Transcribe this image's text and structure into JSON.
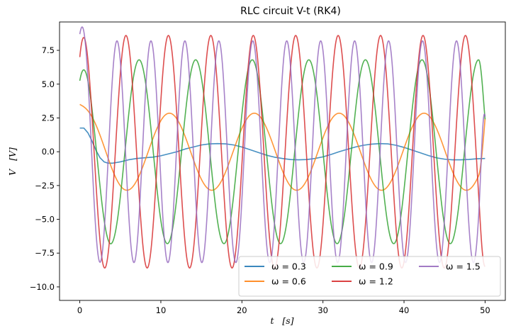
{
  "chart_data": {
    "type": "line",
    "title": "RLC circuit V-t (RK4)",
    "xlabel": "t   [s]",
    "ylabel": "V   [V]",
    "xlim": [
      -2.5,
      52.5
    ],
    "ylim": [
      -11.0,
      9.6
    ],
    "xticks": [
      0,
      10,
      20,
      30,
      40,
      50
    ],
    "xtick_labels": [
      "0",
      "10",
      "20",
      "30",
      "40",
      "50"
    ],
    "yticks": [
      -10.0,
      -7.5,
      -5.0,
      -2.5,
      0.0,
      2.5,
      5.0,
      7.5
    ],
    "ytick_labels": [
      "−10.0",
      "−7.5",
      "−5.0",
      "−2.5",
      "0.0",
      "2.5",
      "5.0",
      "7.5"
    ],
    "grid": false,
    "legend": {
      "position": "lower-right",
      "columns": 3
    },
    "series": [
      {
        "name": "ω = 0.3",
        "color": "#1f77b4",
        "x": [
          0,
          0.5,
          1,
          1.5,
          2,
          2.5,
          3,
          3.5,
          4,
          5,
          6,
          7,
          8,
          9,
          10,
          11,
          12,
          13,
          14,
          15,
          16,
          17,
          18,
          19,
          20,
          21,
          22,
          23,
          24,
          25,
          26,
          27,
          28,
          29,
          30,
          31,
          32,
          33,
          34,
          35,
          36,
          37,
          38,
          39,
          40,
          41,
          42,
          43,
          44,
          45,
          46,
          47,
          48,
          49,
          50
        ],
        "y": [
          1.75,
          1.75,
          1.4,
          0.8,
          0.1,
          -0.45,
          -0.75,
          -0.85,
          -0.85,
          -0.75,
          -0.6,
          -0.5,
          -0.45,
          -0.4,
          -0.3,
          -0.15,
          0.0,
          0.2,
          0.35,
          0.5,
          0.58,
          0.6,
          0.58,
          0.5,
          0.35,
          0.15,
          -0.05,
          -0.25,
          -0.4,
          -0.5,
          -0.58,
          -0.6,
          -0.58,
          -0.5,
          -0.38,
          -0.2,
          0.0,
          0.18,
          0.35,
          0.48,
          0.56,
          0.6,
          0.58,
          0.48,
          0.32,
          0.12,
          -0.08,
          -0.28,
          -0.45,
          -0.55,
          -0.6,
          -0.6,
          -0.57,
          -0.52,
          -0.5
        ]
      },
      {
        "name": "ω = 0.6",
        "color": "#ff7f0e",
        "amp": 2.85,
        "omega": 0.6,
        "phase": -0.35,
        "v0": 3.5,
        "decay": 0.9,
        "v_end": 2.45
      },
      {
        "name": "ω = 0.9",
        "color": "#2ca02c",
        "amp": 6.8,
        "omega": 0.9,
        "phase": -0.3,
        "v0": 5.25,
        "decay": 0.8,
        "v_end": 2.4
      },
      {
        "name": "ω = 1.2",
        "color": "#d62728",
        "amp": 8.6,
        "omega": 1.2,
        "phase": -0.55,
        "v0": 7.0,
        "decay": 0.6,
        "v_end": -8.5
      },
      {
        "name": "ω = 1.5",
        "color": "#9467bd",
        "amp": 8.2,
        "omega": 1.5,
        "phase": -0.6,
        "v0": 8.7,
        "decay": 0.55,
        "v_end": 2.6
      }
    ]
  }
}
